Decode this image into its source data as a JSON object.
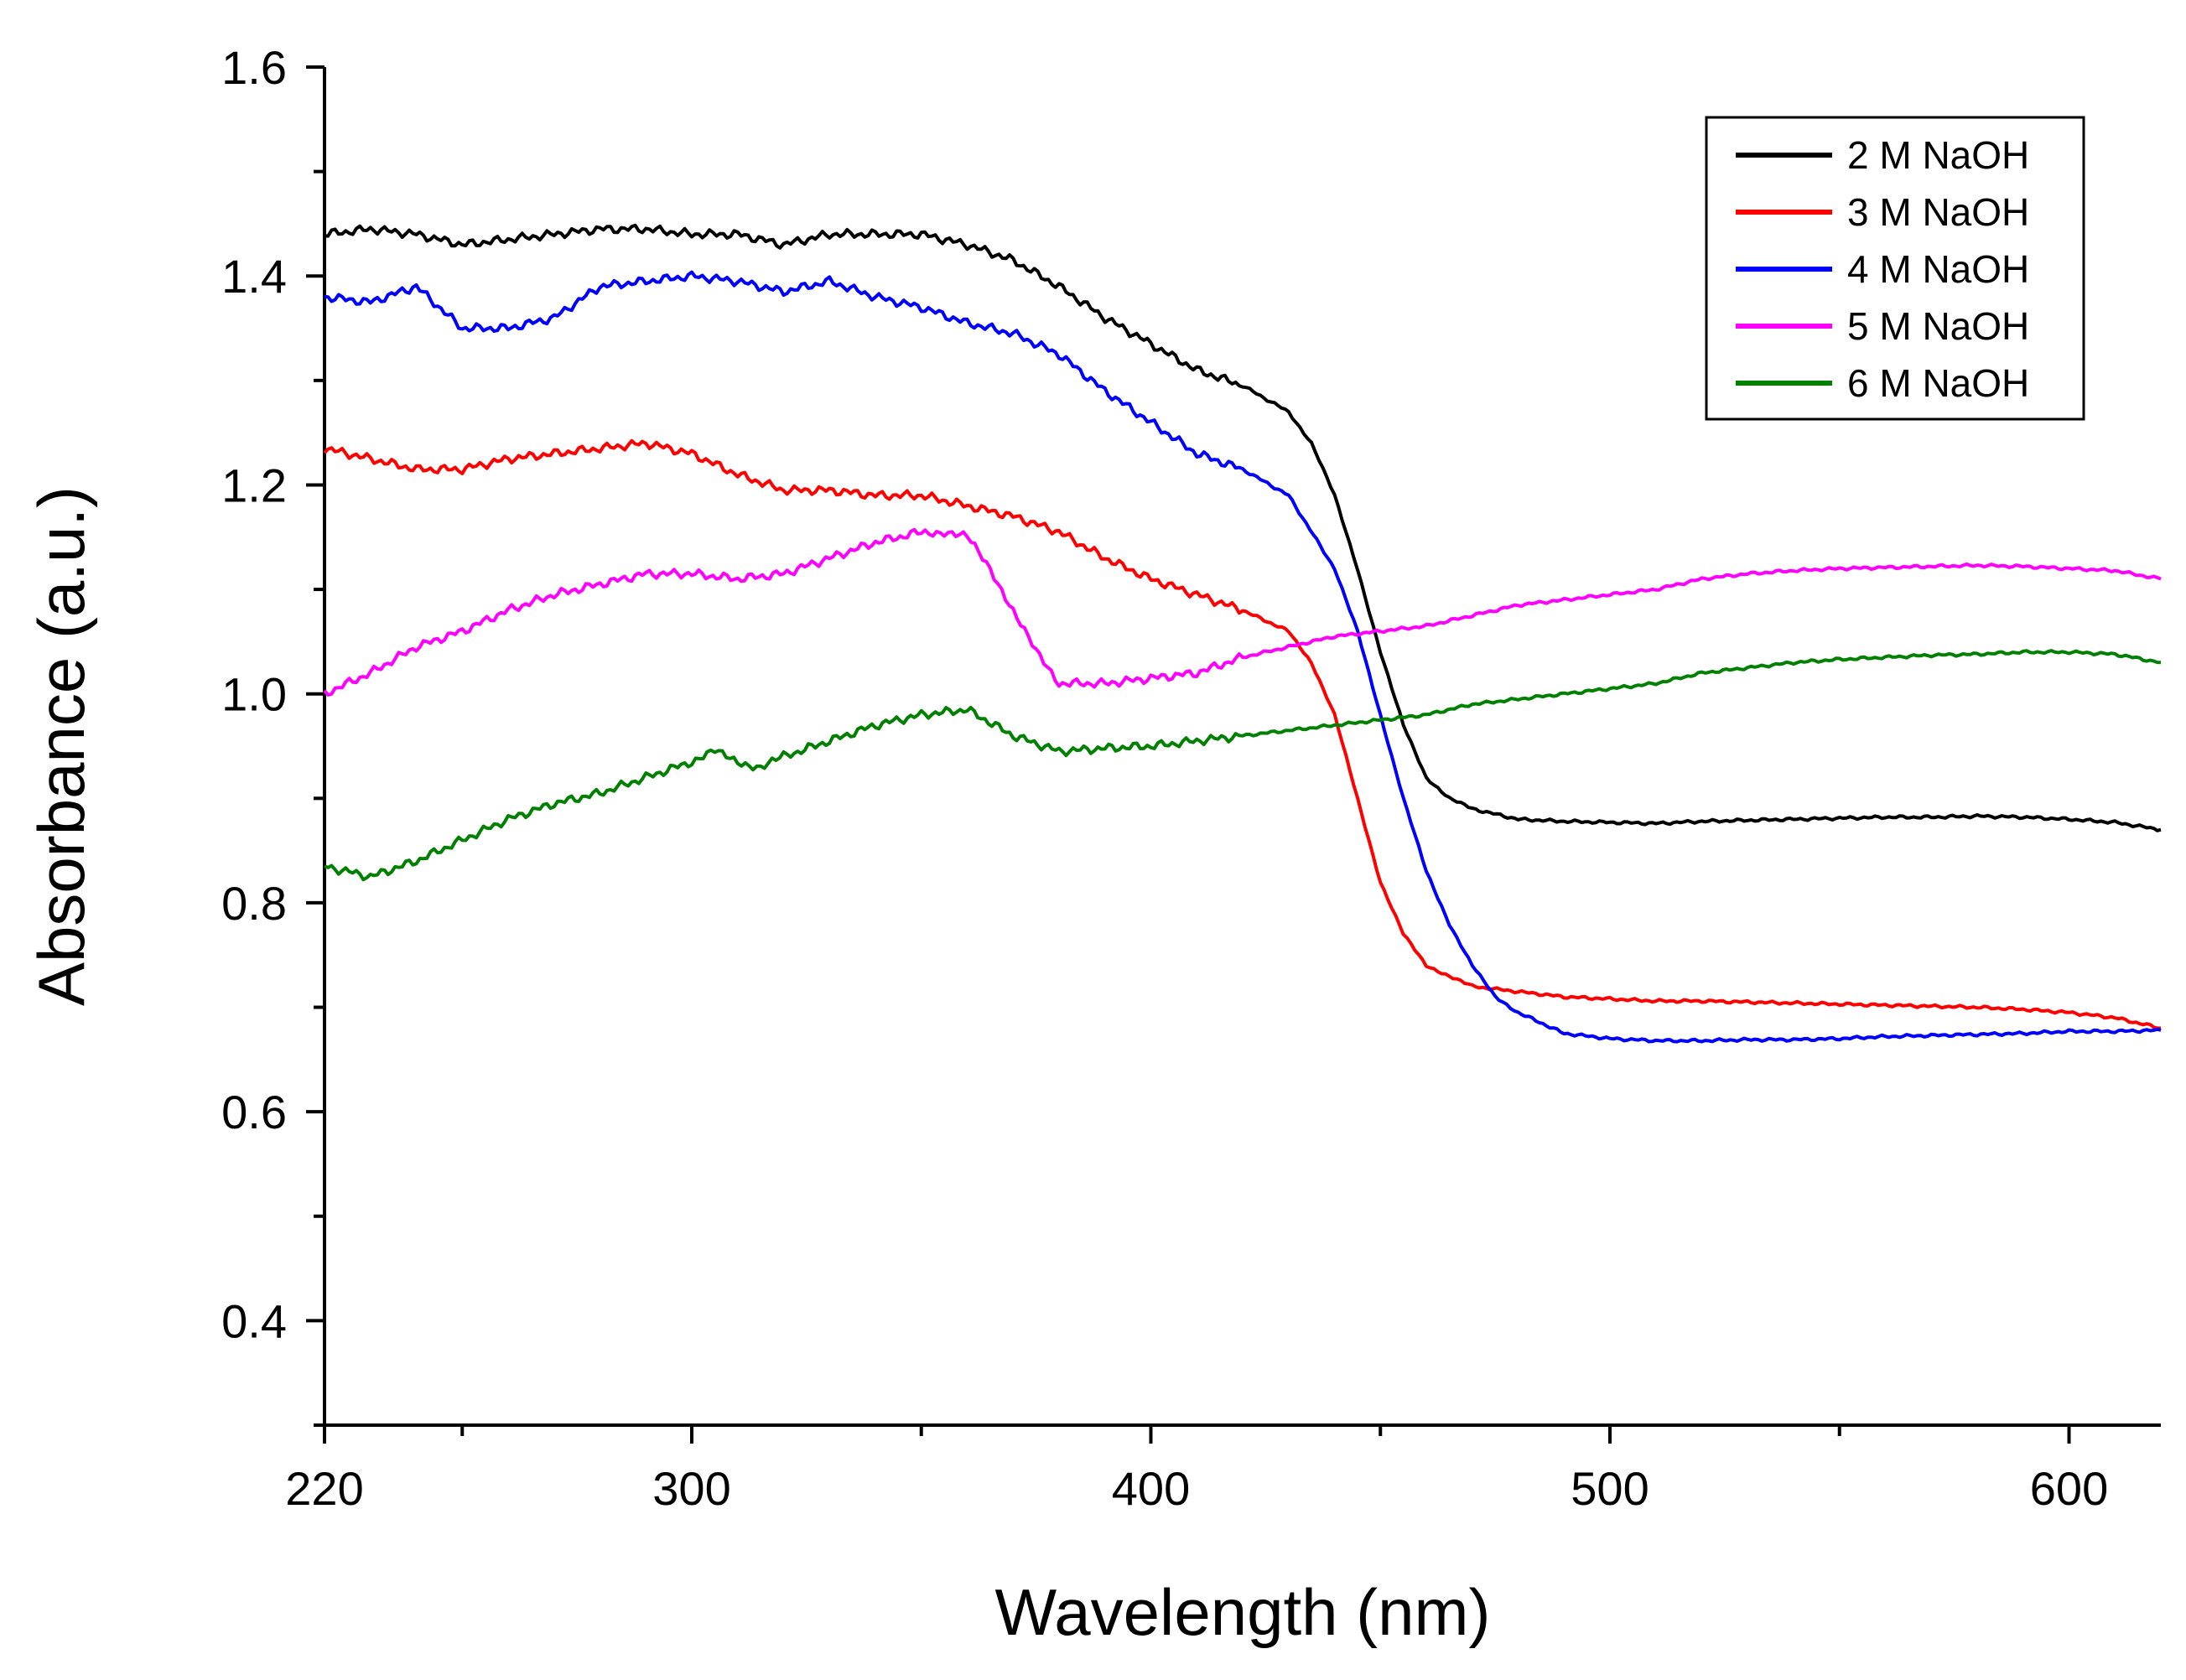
{
  "chart_data": {
    "type": "line",
    "title": "",
    "xlabel": "Wavelength (nm)",
    "ylabel": "Absorbance (a.u.)",
    "xlim": [
      220,
      620
    ],
    "ylim": [
      0.3,
      1.6
    ],
    "x_ticks": [
      220,
      300,
      400,
      500,
      600
    ],
    "x_minor_ticks": [
      250,
      350,
      450,
      550
    ],
    "y_ticks": [
      0.4,
      0.6,
      0.8,
      1.0,
      1.2,
      1.4,
      1.6
    ],
    "x_tick_labels": [
      "220",
      "300",
      "400",
      "500",
      "600"
    ],
    "y_tick_labels": [
      "0.4",
      "0.6",
      "0.8",
      "1.0",
      "1.2",
      "1.4",
      "1.6"
    ],
    "grid": false,
    "legend_position": "top-right",
    "series": [
      {
        "name": "2 M NaOH",
        "color": "#000000",
        "x": [
          220,
          230,
          240,
          250,
          260,
          270,
          280,
          290,
          300,
          310,
          320,
          330,
          340,
          350,
          360,
          370,
          380,
          390,
          400,
          410,
          420,
          430,
          435,
          440,
          445,
          450,
          455,
          460,
          465,
          470,
          480,
          490,
          500,
          510,
          520,
          530,
          540,
          550,
          560,
          570,
          580,
          590,
          600,
          610,
          620
        ],
        "y": [
          1.44,
          1.445,
          1.44,
          1.43,
          1.435,
          1.44,
          1.445,
          1.445,
          1.44,
          1.44,
          1.43,
          1.44,
          1.44,
          1.44,
          1.43,
          1.415,
          1.39,
          1.36,
          1.335,
          1.31,
          1.295,
          1.27,
          1.24,
          1.19,
          1.12,
          1.04,
          0.97,
          0.92,
          0.9,
          0.89,
          0.88,
          0.878,
          0.877,
          0.876,
          0.878,
          0.879,
          0.88,
          0.881,
          0.882,
          0.882,
          0.883,
          0.882,
          0.88,
          0.877,
          0.87
        ]
      },
      {
        "name": "3 M NaOH",
        "color": "#ff0000",
        "x": [
          220,
          230,
          240,
          250,
          260,
          270,
          280,
          290,
          300,
          310,
          320,
          330,
          340,
          350,
          360,
          370,
          380,
          390,
          400,
          410,
          420,
          430,
          435,
          440,
          445,
          450,
          455,
          460,
          465,
          470,
          480,
          490,
          500,
          510,
          520,
          530,
          540,
          550,
          560,
          570,
          580,
          590,
          600,
          610,
          620
        ],
        "y": [
          1.235,
          1.225,
          1.215,
          1.215,
          1.225,
          1.23,
          1.235,
          1.24,
          1.23,
          1.21,
          1.195,
          1.195,
          1.19,
          1.19,
          1.18,
          1.17,
          1.155,
          1.13,
          1.11,
          1.095,
          1.08,
          1.06,
          1.03,
          0.98,
          0.9,
          0.82,
          0.77,
          0.74,
          0.73,
          0.72,
          0.715,
          0.71,
          0.708,
          0.706,
          0.706,
          0.705,
          0.704,
          0.703,
          0.702,
          0.701,
          0.7,
          0.698,
          0.695,
          0.69,
          0.68
        ]
      },
      {
        "name": "4 M NaOH",
        "color": "#0000ff",
        "x": [
          220,
          230,
          240,
          250,
          260,
          270,
          280,
          290,
          300,
          310,
          320,
          330,
          340,
          350,
          360,
          370,
          380,
          390,
          400,
          410,
          420,
          430,
          440,
          445,
          450,
          455,
          460,
          465,
          470,
          475,
          480,
          490,
          500,
          510,
          520,
          530,
          540,
          550,
          560,
          570,
          580,
          590,
          600,
          610,
          620
        ],
        "y": [
          1.38,
          1.375,
          1.39,
          1.35,
          1.35,
          1.36,
          1.39,
          1.395,
          1.4,
          1.395,
          1.385,
          1.395,
          1.38,
          1.37,
          1.355,
          1.345,
          1.325,
          1.29,
          1.26,
          1.23,
          1.215,
          1.19,
          1.12,
          1.06,
          0.98,
          0.9,
          0.83,
          0.78,
          0.74,
          0.71,
          0.695,
          0.675,
          0.67,
          0.668,
          0.668,
          0.669,
          0.669,
          0.67,
          0.672,
          0.673,
          0.674,
          0.675,
          0.677,
          0.677,
          0.678
        ]
      },
      {
        "name": "5 M NaOH",
        "color": "#ff00ff",
        "x": [
          220,
          230,
          240,
          250,
          260,
          270,
          280,
          290,
          300,
          310,
          320,
          330,
          340,
          350,
          355,
          360,
          365,
          370,
          375,
          380,
          390,
          400,
          410,
          420,
          430,
          440,
          450,
          460,
          470,
          480,
          490,
          500,
          510,
          520,
          530,
          540,
          550,
          560,
          570,
          580,
          590,
          600,
          610,
          620
        ],
        "y": [
          1.0,
          1.02,
          1.045,
          1.06,
          1.08,
          1.095,
          1.105,
          1.115,
          1.115,
          1.11,
          1.115,
          1.13,
          1.145,
          1.155,
          1.155,
          1.15,
          1.12,
          1.08,
          1.04,
          1.01,
          1.01,
          1.015,
          1.02,
          1.035,
          1.045,
          1.055,
          1.06,
          1.065,
          1.075,
          1.085,
          1.09,
          1.095,
          1.1,
          1.11,
          1.115,
          1.118,
          1.12,
          1.121,
          1.122,
          1.123,
          1.122,
          1.12,
          1.118,
          1.11
        ]
      },
      {
        "name": "6 M NaOH",
        "color": "#008000",
        "x": [
          220,
          230,
          240,
          250,
          260,
          270,
          280,
          290,
          300,
          305,
          310,
          315,
          320,
          330,
          340,
          350,
          360,
          370,
          380,
          390,
          400,
          410,
          420,
          430,
          440,
          450,
          460,
          470,
          480,
          490,
          500,
          510,
          520,
          530,
          540,
          550,
          560,
          570,
          580,
          590,
          600,
          610,
          620
        ],
        "y": [
          0.835,
          0.825,
          0.84,
          0.86,
          0.88,
          0.895,
          0.905,
          0.92,
          0.935,
          0.945,
          0.935,
          0.93,
          0.94,
          0.955,
          0.97,
          0.98,
          0.985,
          0.96,
          0.945,
          0.948,
          0.95,
          0.955,
          0.96,
          0.965,
          0.97,
          0.975,
          0.98,
          0.99,
          0.995,
          1.0,
          1.005,
          1.01,
          1.02,
          1.025,
          1.03,
          1.033,
          1.035,
          1.037,
          1.038,
          1.04,
          1.04,
          1.038,
          1.03
        ]
      }
    ]
  }
}
